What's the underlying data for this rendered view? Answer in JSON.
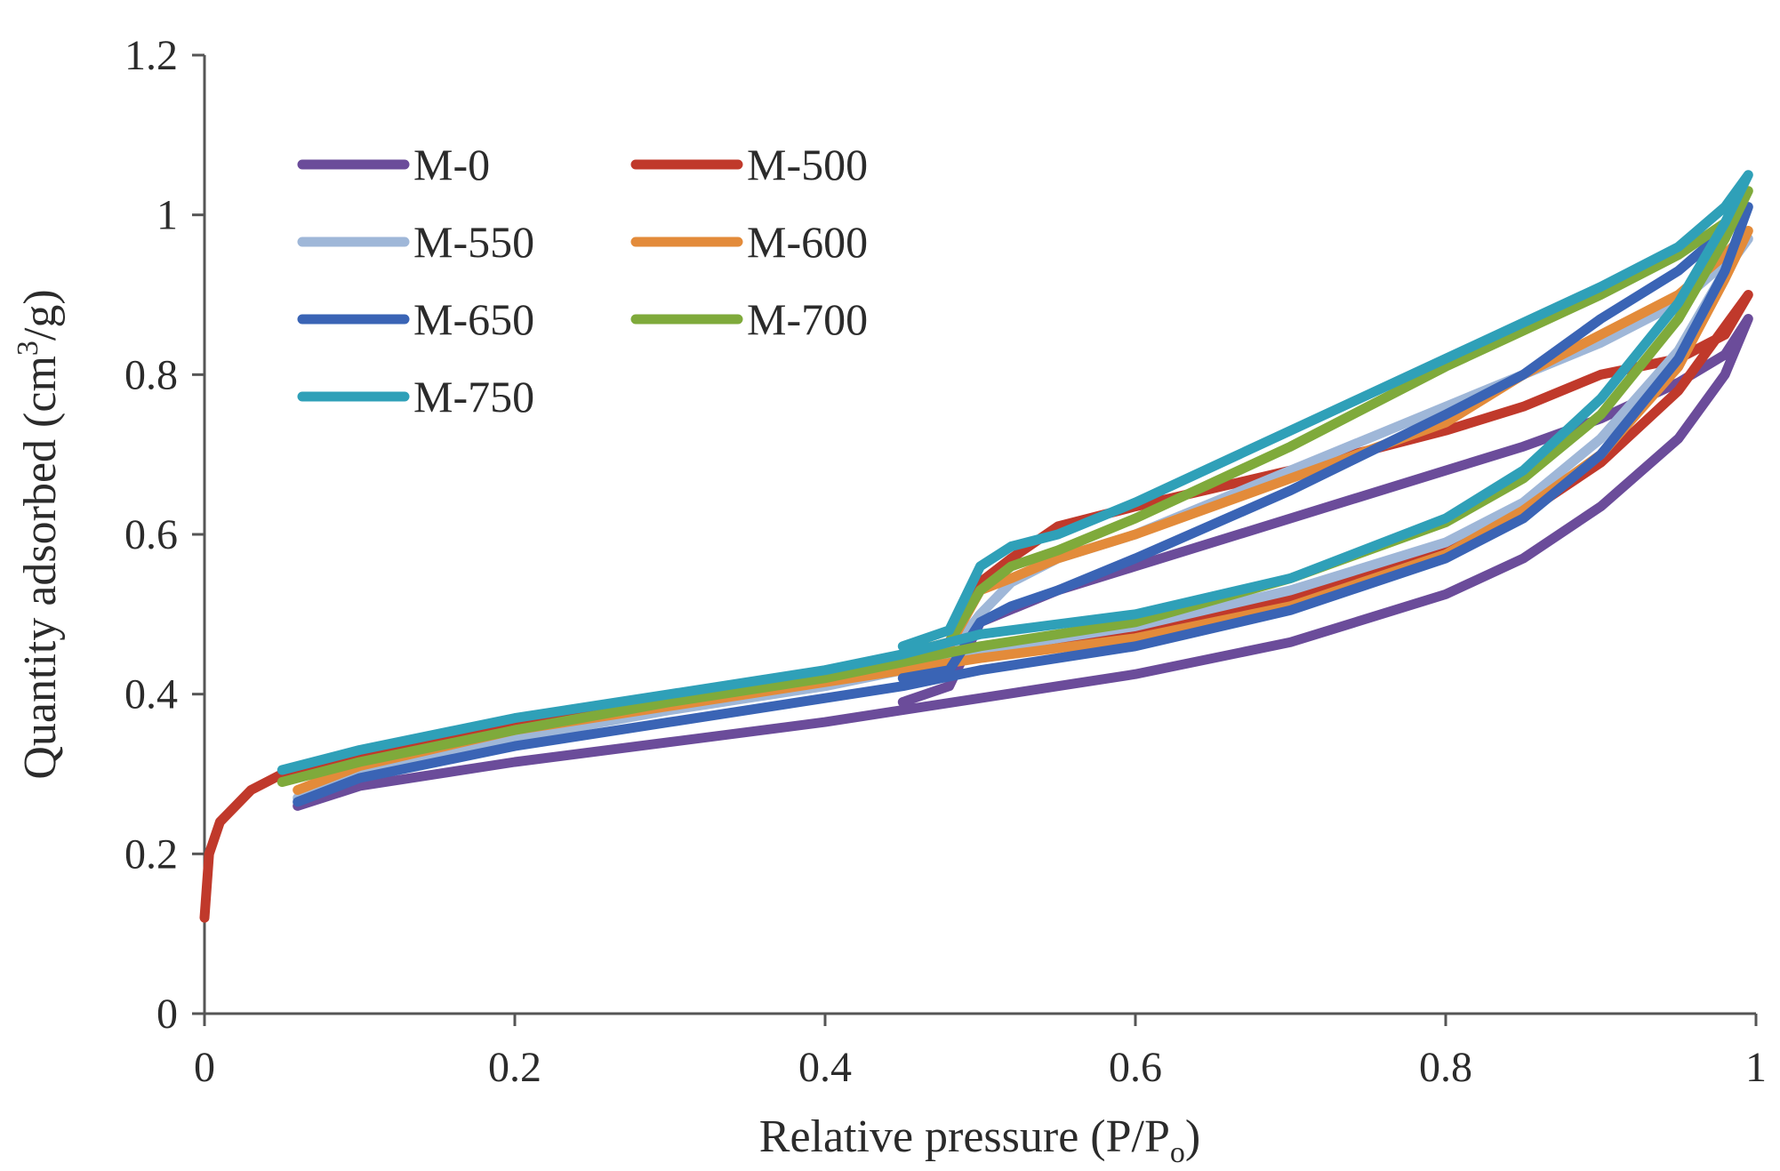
{
  "chart_data": {
    "type": "line",
    "title": "",
    "xlabel_parts": [
      "Relative pressure (P/P",
      "o",
      ")"
    ],
    "ylabel_parts": [
      "Quantity adsorbed (cm",
      "3",
      "/g)"
    ],
    "xlim": [
      0,
      1
    ],
    "ylim": [
      0,
      1.2
    ],
    "xticks": [
      0,
      0.2,
      0.4,
      0.6,
      0.8,
      1
    ],
    "xtick_labels": [
      "0",
      "0.2",
      "0.4",
      "0.6",
      "0.8",
      "1"
    ],
    "yticks": [
      0,
      0.2,
      0.4,
      0.6,
      0.8,
      1,
      1.2
    ],
    "ytick_labels": [
      "0",
      "0.2",
      "0.4",
      "0.6",
      "0.8",
      "1",
      "1.2"
    ],
    "grid": false,
    "legend": "top-left",
    "series": [
      {
        "name": "M-0",
        "color": "#6b4c9a",
        "points": [
          [
            0.06,
            0.26
          ],
          [
            0.1,
            0.285
          ],
          [
            0.2,
            0.315
          ],
          [
            0.3,
            0.34
          ],
          [
            0.4,
            0.365
          ],
          [
            0.45,
            0.38
          ],
          [
            0.5,
            0.395
          ],
          [
            0.55,
            0.41
          ],
          [
            0.6,
            0.425
          ],
          [
            0.7,
            0.465
          ],
          [
            0.8,
            0.525
          ],
          [
            0.85,
            0.57
          ],
          [
            0.9,
            0.635
          ],
          [
            0.95,
            0.72
          ],
          [
            0.98,
            0.8
          ],
          [
            0.995,
            0.87
          ],
          [
            0.98,
            0.825
          ],
          [
            0.95,
            0.79
          ],
          [
            0.9,
            0.745
          ],
          [
            0.85,
            0.71
          ],
          [
            0.8,
            0.68
          ],
          [
            0.7,
            0.62
          ],
          [
            0.6,
            0.56
          ],
          [
            0.55,
            0.53
          ],
          [
            0.5,
            0.49
          ],
          [
            0.48,
            0.41
          ],
          [
            0.45,
            0.39
          ]
        ]
      },
      {
        "name": "M-500",
        "color": "#c0392b",
        "points": [
          [
            0,
            0.12
          ],
          [
            0.003,
            0.2
          ],
          [
            0.01,
            0.24
          ],
          [
            0.03,
            0.28
          ],
          [
            0.05,
            0.3
          ],
          [
            0.1,
            0.325
          ],
          [
            0.2,
            0.36
          ],
          [
            0.3,
            0.39
          ],
          [
            0.4,
            0.42
          ],
          [
            0.45,
            0.44
          ],
          [
            0.5,
            0.455
          ],
          [
            0.6,
            0.48
          ],
          [
            0.7,
            0.52
          ],
          [
            0.8,
            0.58
          ],
          [
            0.85,
            0.625
          ],
          [
            0.9,
            0.69
          ],
          [
            0.95,
            0.78
          ],
          [
            0.98,
            0.86
          ],
          [
            0.995,
            0.9
          ],
          [
            0.98,
            0.85
          ],
          [
            0.95,
            0.82
          ],
          [
            0.9,
            0.8
          ],
          [
            0.85,
            0.76
          ],
          [
            0.8,
            0.73
          ],
          [
            0.7,
            0.68
          ],
          [
            0.6,
            0.635
          ],
          [
            0.55,
            0.61
          ],
          [
            0.52,
            0.57
          ],
          [
            0.5,
            0.54
          ],
          [
            0.48,
            0.465
          ],
          [
            0.45,
            0.45
          ]
        ]
      },
      {
        "name": "M-550",
        "color": "#9fb7d8",
        "points": [
          [
            0.06,
            0.27
          ],
          [
            0.1,
            0.3
          ],
          [
            0.2,
            0.345
          ],
          [
            0.3,
            0.38
          ],
          [
            0.4,
            0.41
          ],
          [
            0.45,
            0.43
          ],
          [
            0.5,
            0.455
          ],
          [
            0.6,
            0.485
          ],
          [
            0.7,
            0.53
          ],
          [
            0.8,
            0.59
          ],
          [
            0.85,
            0.64
          ],
          [
            0.9,
            0.72
          ],
          [
            0.95,
            0.83
          ],
          [
            0.98,
            0.93
          ],
          [
            0.995,
            0.97
          ],
          [
            0.98,
            0.94
          ],
          [
            0.95,
            0.89
          ],
          [
            0.9,
            0.84
          ],
          [
            0.85,
            0.8
          ],
          [
            0.8,
            0.76
          ],
          [
            0.7,
            0.68
          ],
          [
            0.6,
            0.6
          ],
          [
            0.55,
            0.57
          ],
          [
            0.52,
            0.54
          ],
          [
            0.5,
            0.5
          ],
          [
            0.48,
            0.45
          ],
          [
            0.45,
            0.44
          ]
        ]
      },
      {
        "name": "M-600",
        "color": "#e38b3a",
        "points": [
          [
            0.06,
            0.28
          ],
          [
            0.1,
            0.31
          ],
          [
            0.2,
            0.355
          ],
          [
            0.3,
            0.385
          ],
          [
            0.4,
            0.415
          ],
          [
            0.45,
            0.43
          ],
          [
            0.5,
            0.445
          ],
          [
            0.6,
            0.47
          ],
          [
            0.7,
            0.51
          ],
          [
            0.8,
            0.575
          ],
          [
            0.85,
            0.63
          ],
          [
            0.9,
            0.7
          ],
          [
            0.95,
            0.81
          ],
          [
            0.98,
            0.92
          ],
          [
            0.995,
            0.98
          ],
          [
            0.98,
            0.95
          ],
          [
            0.95,
            0.9
          ],
          [
            0.9,
            0.85
          ],
          [
            0.85,
            0.8
          ],
          [
            0.8,
            0.74
          ],
          [
            0.7,
            0.67
          ],
          [
            0.6,
            0.6
          ],
          [
            0.55,
            0.57
          ],
          [
            0.52,
            0.545
          ],
          [
            0.5,
            0.53
          ],
          [
            0.48,
            0.46
          ],
          [
            0.45,
            0.445
          ]
        ]
      },
      {
        "name": "M-650",
        "color": "#3a64b5",
        "points": [
          [
            0.06,
            0.265
          ],
          [
            0.1,
            0.295
          ],
          [
            0.2,
            0.335
          ],
          [
            0.3,
            0.365
          ],
          [
            0.4,
            0.395
          ],
          [
            0.45,
            0.41
          ],
          [
            0.5,
            0.43
          ],
          [
            0.6,
            0.46
          ],
          [
            0.7,
            0.505
          ],
          [
            0.8,
            0.57
          ],
          [
            0.85,
            0.62
          ],
          [
            0.9,
            0.7
          ],
          [
            0.95,
            0.82
          ],
          [
            0.98,
            0.93
          ],
          [
            0.995,
            1.01
          ],
          [
            0.98,
            0.98
          ],
          [
            0.95,
            0.93
          ],
          [
            0.9,
            0.87
          ],
          [
            0.85,
            0.8
          ],
          [
            0.8,
            0.75
          ],
          [
            0.7,
            0.655
          ],
          [
            0.6,
            0.57
          ],
          [
            0.55,
            0.53
          ],
          [
            0.52,
            0.51
          ],
          [
            0.5,
            0.49
          ],
          [
            0.48,
            0.43
          ],
          [
            0.45,
            0.42
          ]
        ]
      },
      {
        "name": "M-700",
        "color": "#7faa3b",
        "points": [
          [
            0.05,
            0.29
          ],
          [
            0.1,
            0.315
          ],
          [
            0.2,
            0.355
          ],
          [
            0.3,
            0.39
          ],
          [
            0.4,
            0.42
          ],
          [
            0.45,
            0.44
          ],
          [
            0.5,
            0.46
          ],
          [
            0.6,
            0.49
          ],
          [
            0.7,
            0.545
          ],
          [
            0.8,
            0.615
          ],
          [
            0.85,
            0.67
          ],
          [
            0.9,
            0.75
          ],
          [
            0.95,
            0.87
          ],
          [
            0.98,
            0.97
          ],
          [
            0.995,
            1.03
          ],
          [
            0.98,
            0.99
          ],
          [
            0.95,
            0.95
          ],
          [
            0.9,
            0.9
          ],
          [
            0.85,
            0.855
          ],
          [
            0.8,
            0.81
          ],
          [
            0.7,
            0.71
          ],
          [
            0.6,
            0.62
          ],
          [
            0.55,
            0.58
          ],
          [
            0.52,
            0.56
          ],
          [
            0.5,
            0.53
          ],
          [
            0.48,
            0.465
          ],
          [
            0.45,
            0.45
          ]
        ]
      },
      {
        "name": "M-750",
        "color": "#2fa0b8",
        "points": [
          [
            0.05,
            0.305
          ],
          [
            0.1,
            0.33
          ],
          [
            0.2,
            0.37
          ],
          [
            0.3,
            0.4
          ],
          [
            0.4,
            0.43
          ],
          [
            0.45,
            0.45
          ],
          [
            0.5,
            0.475
          ],
          [
            0.6,
            0.5
          ],
          [
            0.7,
            0.545
          ],
          [
            0.8,
            0.62
          ],
          [
            0.85,
            0.68
          ],
          [
            0.9,
            0.77
          ],
          [
            0.95,
            0.89
          ],
          [
            0.98,
            0.99
          ],
          [
            0.995,
            1.05
          ],
          [
            0.98,
            1.01
          ],
          [
            0.95,
            0.96
          ],
          [
            0.9,
            0.91
          ],
          [
            0.85,
            0.865
          ],
          [
            0.8,
            0.82
          ],
          [
            0.7,
            0.73
          ],
          [
            0.6,
            0.64
          ],
          [
            0.55,
            0.6
          ],
          [
            0.52,
            0.585
          ],
          [
            0.5,
            0.56
          ],
          [
            0.48,
            0.48
          ],
          [
            0.45,
            0.46
          ]
        ]
      }
    ]
  }
}
